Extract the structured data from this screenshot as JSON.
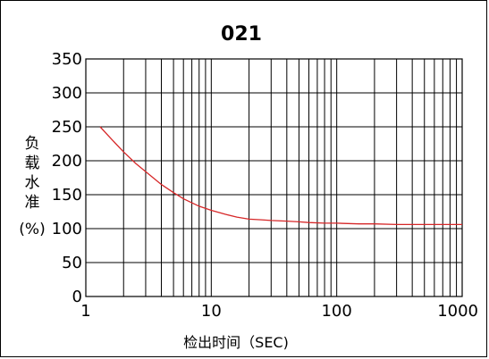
{
  "chart_data": {
    "type": "line",
    "title": "021",
    "xlabel": "检出时间（SEC)",
    "ylabel_chars": [
      "负",
      "载",
      "水",
      "准"
    ],
    "ylabel_unit": "(%)",
    "xscale": "log",
    "xlim": [
      1,
      1000
    ],
    "ylim": [
      0,
      350
    ],
    "grid": true,
    "x_ticks": [
      1,
      10,
      100,
      1000
    ],
    "x_tick_labels": [
      "1",
      "10",
      "100",
      "1000"
    ],
    "y_ticks": [
      0,
      50,
      100,
      150,
      200,
      250,
      300,
      350
    ],
    "y_tick_labels": [
      "0",
      "50",
      "100",
      "150",
      "200",
      "250",
      "300",
      "350"
    ],
    "series": [
      {
        "color": "#d62728",
        "x": [
          1.3,
          1.6,
          2,
          2.5,
          3,
          4,
          5,
          6,
          8,
          10,
          13,
          16,
          20,
          25,
          30,
          40,
          50,
          60,
          80,
          100,
          150,
          200,
          300,
          500,
          1000
        ],
        "y": [
          250,
          232,
          213,
          196,
          184,
          165,
          153,
          144,
          133,
          127,
          121,
          117,
          114,
          113,
          112,
          111,
          110,
          109,
          108,
          108,
          107,
          107,
          106,
          106,
          106
        ]
      }
    ]
  }
}
